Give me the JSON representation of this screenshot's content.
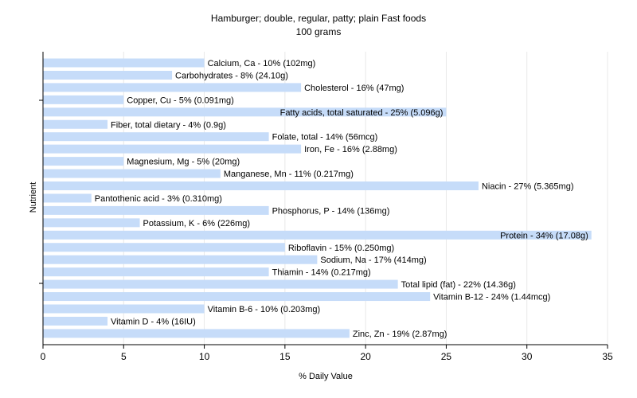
{
  "chart_data": {
    "type": "bar",
    "orientation": "horizontal",
    "title": "Hamburger; double, regular, patty; plain Fast foods",
    "subtitle": "100 grams",
    "xlabel": "% Daily Value",
    "ylabel": "Nutrient",
    "xlim": [
      0,
      35
    ],
    "xticks": [
      0,
      5,
      10,
      15,
      20,
      25,
      30,
      35
    ],
    "grid": true,
    "bar_color": "#c6dcf9",
    "grid_color": "#e8e8e8",
    "categories": [
      "Calcium, Ca",
      "Carbohydrates",
      "Cholesterol",
      "Copper, Cu",
      "Fatty acids, total saturated",
      "Fiber, total dietary",
      "Folate, total",
      "Iron, Fe",
      "Magnesium, Mg",
      "Manganese, Mn",
      "Niacin",
      "Pantothenic acid",
      "Phosphorus, P",
      "Potassium, K",
      "Protein",
      "Riboflavin",
      "Sodium, Na",
      "Thiamin",
      "Total lipid (fat)",
      "Vitamin B-12",
      "Vitamin B-6",
      "Vitamin D",
      "Zinc, Zn"
    ],
    "values": [
      10,
      8,
      16,
      5,
      25,
      4,
      14,
      16,
      5,
      11,
      27,
      3,
      14,
      6,
      34,
      15,
      17,
      14,
      22,
      24,
      10,
      4,
      19
    ],
    "labels": [
      "Calcium, Ca - 10% (102mg)",
      "Carbohydrates - 8% (24.10g)",
      "Cholesterol - 16% (47mg)",
      "Copper, Cu - 5% (0.091mg)",
      "Fatty acids, total saturated - 25% (5.096g)",
      "Fiber, total dietary - 4% (0.9g)",
      "Folate, total - 14% (56mcg)",
      "Iron, Fe - 16% (2.88mg)",
      "Magnesium, Mg - 5% (20mg)",
      "Manganese, Mn - 11% (0.217mg)",
      "Niacin - 27% (5.365mg)",
      "Pantothenic acid - 3% (0.310mg)",
      "Phosphorus, P - 14% (136mg)",
      "Potassium, K - 6% (226mg)",
      "Protein - 34% (17.08g)",
      "Riboflavin - 15% (0.250mg)",
      "Sodium, Na - 17% (414mg)",
      "Thiamin - 14% (0.217mg)",
      "Total lipid (fat) - 22% (14.36g)",
      "Vitamin B-12 - 24% (1.44mcg)",
      "Vitamin B-6 - 10% (0.203mg)",
      "Vitamin D - 4% (16IU)",
      "Zinc, Zn - 19% (2.87mg)"
    ]
  }
}
